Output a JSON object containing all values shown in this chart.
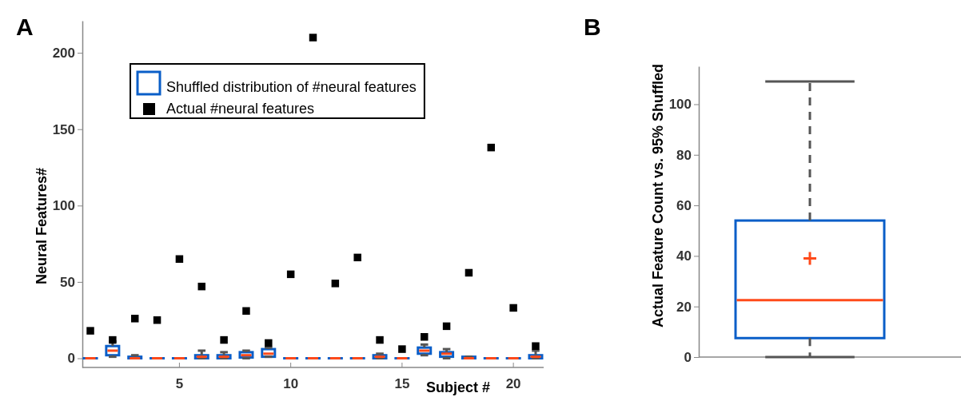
{
  "chart_data": [
    {
      "type": "box",
      "title": "A",
      "xlabel": "Subject #",
      "ylabel": "Neural Features#",
      "categories": [
        null,
        null,
        null,
        null,
        "5",
        null,
        null,
        null,
        null,
        "10",
        null,
        null,
        null,
        null,
        "15",
        null,
        null,
        null,
        null,
        "20",
        null
      ],
      "ylim": [
        -6,
        221
      ],
      "yticks": [
        0,
        50,
        100,
        150,
        200
      ],
      "legend": "top",
      "series": [
        {
          "type": "box",
          "name": "Shuffled distribution of #neural features",
          "color": "#0a5ec8",
          "boxes": [
            {
              "low": 0,
              "q1": 0,
              "median": 0,
              "q3": 0,
              "high": 0
            },
            {
              "low": 1,
              "q1": 2,
              "median": 5,
              "q3": 8,
              "high": 11
            },
            {
              "low": 0,
              "q1": 0,
              "median": 0,
              "q3": 1,
              "high": 2
            },
            {
              "low": 0,
              "q1": 0,
              "median": 0,
              "q3": 0,
              "high": 0
            },
            {
              "low": 0,
              "q1": 0,
              "median": 0,
              "q3": 0,
              "high": 0
            },
            {
              "low": 0,
              "q1": 0,
              "median": 1,
              "q3": 2,
              "high": 5
            },
            {
              "low": 0,
              "q1": 0,
              "median": 1,
              "q3": 2,
              "high": 4
            },
            {
              "low": 0,
              "q1": 0.5,
              "median": 2,
              "q3": 4,
              "high": 5
            },
            {
              "low": 1,
              "q1": 1,
              "median": 3,
              "q3": 6,
              "high": 7
            },
            {
              "low": 0,
              "q1": 0,
              "median": 0,
              "q3": 0,
              "high": 0
            },
            {
              "low": 0,
              "q1": 0,
              "median": 0,
              "q3": 0,
              "high": 0
            },
            {
              "low": 0,
              "q1": 0,
              "median": 0,
              "q3": 0,
              "high": 0
            },
            {
              "low": 0,
              "q1": 0,
              "median": 0,
              "q3": 0,
              "high": 0
            },
            {
              "low": 0,
              "q1": 0,
              "median": 1,
              "q3": 2,
              "high": 3
            },
            {
              "low": 0,
              "q1": 0,
              "median": 0,
              "q3": 0,
              "high": 0
            },
            {
              "low": 2,
              "q1": 3,
              "median": 5,
              "q3": 7,
              "high": 9
            },
            {
              "low": 0,
              "q1": 1,
              "median": 3,
              "q3": 4,
              "high": 6
            },
            {
              "low": 0,
              "q1": 0,
              "median": 0,
              "q3": 1,
              "high": 1
            },
            {
              "low": 0,
              "q1": 0,
              "median": 0,
              "q3": 0,
              "high": 0
            },
            {
              "low": 0,
              "q1": 0,
              "median": 0,
              "q3": 0,
              "high": 0
            },
            {
              "low": 0,
              "q1": 0,
              "median": 1,
              "q3": 2,
              "high": 5
            }
          ]
        },
        {
          "type": "scatter",
          "name": "Actual #neural features",
          "color": "#000000",
          "marker": "square",
          "values": [
            18,
            12,
            26,
            25,
            65,
            47,
            12,
            31,
            10,
            55,
            210,
            49,
            66,
            12,
            6,
            14,
            21,
            56,
            138,
            33,
            8
          ]
        }
      ]
    },
    {
      "type": "box",
      "title": "B",
      "ylabel": "Actual Feature Count vs. 95% Shuffled",
      "categories": [
        null
      ],
      "ylim": [
        0,
        115
      ],
      "yticks": [
        0,
        20,
        40,
        60,
        80,
        100
      ],
      "color": "#0a5ec8",
      "boxes": [
        {
          "low": 0,
          "q1": 7.5,
          "median": 22.5,
          "q3": 54,
          "high": 109,
          "mean": 39
        }
      ]
    }
  ]
}
